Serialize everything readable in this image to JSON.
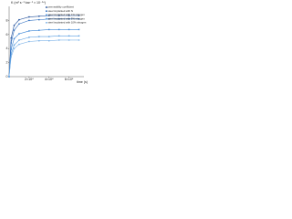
{
  "chart_data": {
    "type": "line",
    "y_label": "K (m² s⁻¹ bar⁻¹ × 10⁻¹⁴)",
    "x_label": "time (s)",
    "x": [
      0,
      2000,
      5000,
      10000,
      20000,
      30000,
      40000,
      50000,
      60000,
      70000
    ],
    "series": [
      {
        "name": "permeability coefficient",
        "color": "#1f4e9a",
        "values": [
          0,
          5.5,
          7.3,
          8.1,
          8.5,
          8.6,
          8.7,
          8.7,
          8.7,
          8.7
        ]
      },
      {
        "name": "steel implanted with N",
        "color": "#2f6fc0",
        "values": [
          0,
          4.8,
          6.6,
          7.5,
          8.0,
          8.1,
          8.2,
          8.2,
          8.2,
          8.2
        ]
      },
      {
        "name": "steel implanted with 1% nitrogen",
        "color": "#3c86d6",
        "values": [
          0,
          3.9,
          5.4,
          6.1,
          6.5,
          6.6,
          6.7,
          6.7,
          6.7,
          6.7
        ]
      },
      {
        "name": "steel implanted with 5% nitrogen",
        "color": "#5a9ee0",
        "values": [
          0,
          3.2,
          4.5,
          5.2,
          5.6,
          5.7,
          5.7,
          5.8,
          5.8,
          5.8
        ]
      },
      {
        "name": "steel implanted with 10% nitrogen",
        "color": "#7db3e8",
        "values": [
          0,
          2.8,
          4.0,
          4.6,
          5.0,
          5.1,
          5.1,
          5.2,
          5.2,
          5.2
        ]
      }
    ],
    "xlim": [
      0,
      75000
    ],
    "xticks": [
      {
        "value": 20000,
        "label": "2×10⁴"
      },
      {
        "value": 40000,
        "label": "4×10⁴"
      },
      {
        "value": 60000,
        "label": "6×10⁴"
      }
    ],
    "ylim": [
      0,
      10
    ],
    "yticks": [
      0,
      2,
      4,
      6,
      8
    ],
    "legend": "upper right"
  }
}
